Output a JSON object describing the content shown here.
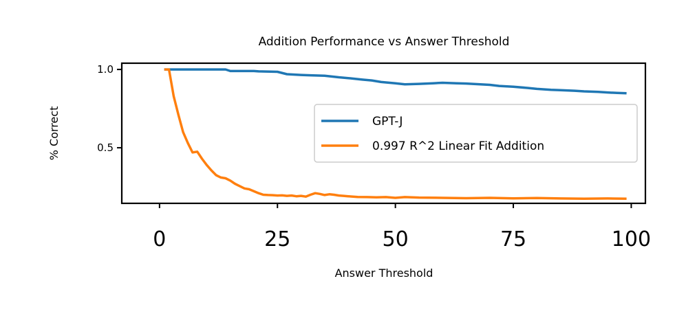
{
  "chart_data": {
    "type": "line",
    "title": "Addition Performance vs Answer Threshold",
    "xlabel": "Answer Threshold",
    "ylabel": "% Correct",
    "xlim": [
      -8,
      103
    ],
    "ylim": [
      0.145,
      1.04
    ],
    "xticks": [
      0,
      25,
      50,
      75,
      100
    ],
    "yticks": [
      0.5,
      1.0
    ],
    "ytick_labels": [
      "0.5",
      "1.0"
    ],
    "grid": false,
    "legend": {
      "placement": "center-right"
    },
    "series": [
      {
        "name": "GPT-J",
        "color": "#1f77b4",
        "x": [
          1,
          5,
          10,
          14,
          15,
          20,
          21,
          25,
          27,
          30,
          32,
          35,
          38,
          40,
          43,
          45,
          47,
          50,
          52,
          55,
          58,
          60,
          63,
          65,
          68,
          70,
          72,
          75,
          78,
          80,
          83,
          85,
          88,
          90,
          93,
          95,
          97,
          99
        ],
        "y": [
          1.0,
          1.0,
          1.0,
          1.0,
          0.99,
          0.99,
          0.988,
          0.985,
          0.97,
          0.965,
          0.963,
          0.96,
          0.95,
          0.945,
          0.935,
          0.93,
          0.92,
          0.912,
          0.905,
          0.908,
          0.912,
          0.915,
          0.912,
          0.91,
          0.905,
          0.902,
          0.895,
          0.89,
          0.882,
          0.876,
          0.87,
          0.868,
          0.864,
          0.86,
          0.857,
          0.853,
          0.85,
          0.848
        ]
      },
      {
        "name": "0.997 R^2 Linear Fit Addition",
        "color": "#ff7f0e",
        "x": [
          1,
          2,
          3,
          4,
          5,
          6,
          7,
          8,
          9,
          10,
          11,
          12,
          13,
          14,
          15,
          16,
          17,
          18,
          19,
          20,
          21,
          22,
          23,
          24,
          25,
          26,
          27,
          28,
          29,
          30,
          31,
          32,
          33,
          34,
          35,
          36,
          37,
          38,
          39,
          40,
          42,
          44,
          46,
          48,
          50,
          52,
          55,
          60,
          65,
          70,
          75,
          80,
          85,
          90,
          95,
          99
        ],
        "y": [
          1.0,
          1.0,
          0.83,
          0.71,
          0.6,
          0.53,
          0.47,
          0.475,
          0.43,
          0.39,
          0.355,
          0.325,
          0.31,
          0.305,
          0.29,
          0.27,
          0.255,
          0.24,
          0.235,
          0.222,
          0.21,
          0.2,
          0.198,
          0.197,
          0.195,
          0.196,
          0.193,
          0.195,
          0.19,
          0.193,
          0.188,
          0.2,
          0.21,
          0.205,
          0.198,
          0.203,
          0.2,
          0.195,
          0.193,
          0.19,
          0.186,
          0.185,
          0.183,
          0.185,
          0.18,
          0.185,
          0.182,
          0.18,
          0.178,
          0.18,
          0.177,
          0.179,
          0.176,
          0.175,
          0.176,
          0.175
        ]
      }
    ]
  }
}
